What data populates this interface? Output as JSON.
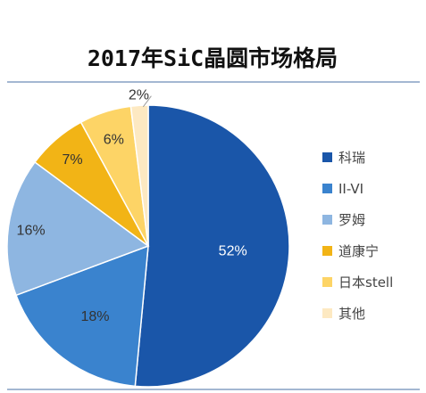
{
  "chart_data": {
    "type": "pie",
    "title": "2017年SiC晶圆市场格局",
    "slices": [
      {
        "label": "科瑞",
        "value": 52,
        "value_label": "52%",
        "color": "#1a56a9",
        "text_color": "#ffffff"
      },
      {
        "label": "II-VI",
        "value": 18,
        "value_label": "18%",
        "color": "#3a83ce",
        "text_color": "#333333"
      },
      {
        "label": "罗姆",
        "value": 16,
        "value_label": "16%",
        "color": "#8eb6e1",
        "text_color": "#333333"
      },
      {
        "label": "道康宁",
        "value": 7,
        "value_label": "7%",
        "color": "#f2b416",
        "text_color": "#333333"
      },
      {
        "label": "日本stell",
        "value": 6,
        "value_label": "6%",
        "color": "#fdd466",
        "text_color": "#333333"
      },
      {
        "label": "其他",
        "value": 2,
        "value_label": "2%",
        "color": "#fde9c2",
        "text_color": "#333333"
      }
    ],
    "legend_position": "right",
    "start_angle_deg": 0,
    "direction": "clockwise"
  },
  "colors": {
    "rule": "#4a6fa5"
  }
}
